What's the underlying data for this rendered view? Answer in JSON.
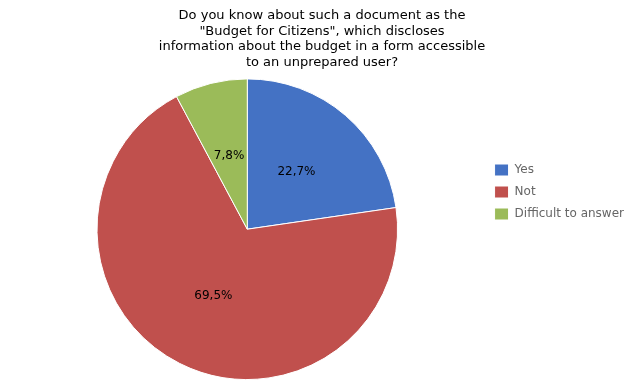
{
  "chart_data": {
    "type": "pie",
    "title": "Do you know about such a document as the\n\"Budget for Citizens\", which discloses\ninformation about the budget in a form accessible\nto an unprepared user?",
    "categories": [
      "Yes",
      "Not",
      "Difficult to answer"
    ],
    "values": [
      22.7,
      69.5,
      7.8
    ],
    "value_labels": [
      "22,7%",
      "69,5%",
      "7,8%"
    ],
    "colors": [
      "#4472C4",
      "#C0504D",
      "#9BBB59"
    ],
    "data_labels": true,
    "legend": "right"
  }
}
